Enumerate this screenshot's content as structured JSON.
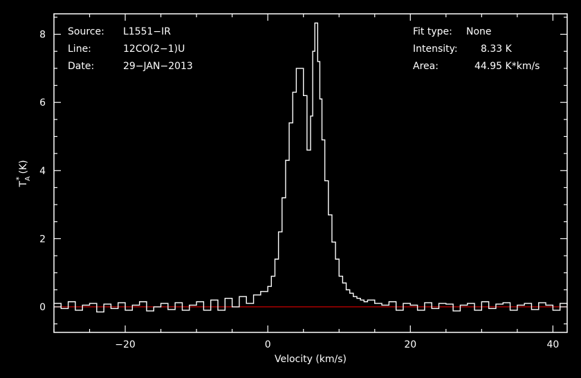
{
  "chart_data": {
    "type": "line",
    "style": "step",
    "xlabel": "Velocity (km/s)",
    "ylabel_main": "T",
    "ylabel_sub": "A",
    "ylabel_sup": "*",
    "ylabel_unit": "(K)",
    "xlim": [
      -30,
      42
    ],
    "ylim": [
      -0.75,
      8.6
    ],
    "xticks": [
      -20,
      0,
      20,
      40
    ],
    "yticks": [
      0,
      2,
      4,
      6,
      8
    ],
    "xtick_labels": [
      "−20",
      "0",
      "20",
      "40"
    ],
    "ytick_labels": [
      "0",
      "2",
      "4",
      "6",
      "8"
    ],
    "grid": false,
    "colors": {
      "background": "#000000",
      "axes": "#ffffff",
      "spectrum": "#ffffff",
      "baseline": "#cc0000"
    },
    "baseline": 0,
    "annotations_left": [
      {
        "key": "Source:",
        "value": "L1551−IR"
      },
      {
        "key": "Line:",
        "value": "12CO(2−1)U"
      },
      {
        "key": "Date:",
        "value": "29−JAN−2013"
      }
    ],
    "annotations_right": [
      {
        "key": "Fit type:",
        "value": "None"
      },
      {
        "key": "Intensity:",
        "value": "8.33 K"
      },
      {
        "key": "Area:",
        "value": "44.95 K*km/s"
      }
    ],
    "series": [
      {
        "x": [
          -30,
          -29,
          -28,
          -27,
          -26,
          -25,
          -24,
          -23,
          -22,
          -21,
          -20,
          -19,
          -18,
          -17,
          -16,
          -15,
          -14,
          -13,
          -12,
          -11,
          -10,
          -9,
          -8,
          -7,
          -6,
          -5,
          -4,
          -3,
          -2,
          -1,
          0,
          0.5,
          1,
          1.5,
          2,
          2.5,
          3,
          3.5,
          4,
          4.5,
          5,
          5.5,
          6,
          6.3,
          6.6,
          7,
          7.3,
          7.6,
          8,
          8.5,
          9,
          9.5,
          10,
          10.5,
          11,
          11.5,
          12,
          12.5,
          13,
          13.5,
          14,
          15,
          16,
          17,
          18,
          19,
          20,
          21,
          22,
          23,
          24,
          25,
          26,
          27,
          28,
          29,
          30,
          31,
          32,
          33,
          34,
          35,
          36,
          37,
          38,
          39,
          40,
          41,
          42
        ],
        "y": [
          0.1,
          -0.05,
          0.15,
          -0.1,
          0.05,
          0.1,
          -0.15,
          0.08,
          -0.05,
          0.12,
          -0.1,
          0.05,
          0.15,
          -0.12,
          0.0,
          0.1,
          -0.08,
          0.12,
          -0.1,
          0.05,
          0.15,
          -0.1,
          0.2,
          -0.1,
          0.25,
          0.0,
          0.3,
          0.1,
          0.35,
          0.45,
          0.6,
          0.9,
          1.4,
          2.2,
          3.2,
          4.3,
          5.4,
          6.3,
          7.0,
          7.0,
          6.2,
          4.6,
          5.6,
          7.5,
          8.33,
          7.2,
          6.1,
          4.9,
          3.7,
          2.7,
          1.9,
          1.4,
          0.9,
          0.7,
          0.5,
          0.4,
          0.3,
          0.25,
          0.2,
          0.15,
          0.2,
          0.1,
          0.05,
          0.15,
          -0.1,
          0.1,
          0.05,
          -0.1,
          0.12,
          -0.05,
          0.1,
          0.08,
          -0.12,
          0.05,
          0.1,
          -0.1,
          0.15,
          -0.05,
          0.08,
          0.12,
          -0.1,
          0.05,
          0.1,
          -0.08,
          0.12,
          0.05,
          -0.1,
          0.1,
          0.05
        ]
      }
    ]
  }
}
